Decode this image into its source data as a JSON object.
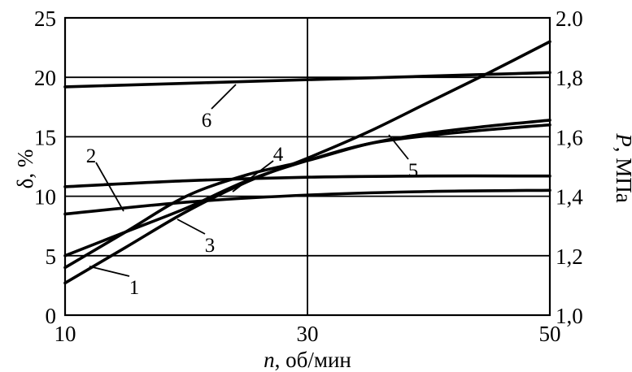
{
  "chart_data": {
    "type": "line",
    "x_axis": {
      "label_var": "n",
      "label_rest": ", об/мин",
      "ticks": [
        10,
        30,
        50
      ],
      "lim": [
        10,
        50
      ]
    },
    "y_axis_left": {
      "label": "δ, %",
      "ticks": [
        "0",
        "5",
        "10",
        "15",
        "20",
        "25"
      ],
      "lim": [
        0,
        25
      ]
    },
    "y_axis_right": {
      "label_var": "P",
      "label_rest": ", МПа",
      "ticks": [
        "1,0",
        "1,2",
        "1,4",
        "1,6",
        "1,8",
        "2.0"
      ],
      "lim": [
        1.0,
        2.0
      ]
    },
    "grid": {
      "horizontal": [
        5,
        10,
        15,
        20
      ],
      "vertical": [
        30
      ]
    },
    "series": [
      {
        "label": "1",
        "x": [
          10,
          15,
          20,
          25,
          30,
          35,
          40,
          45,
          50
        ],
        "y": [
          2.7,
          5.7,
          8.7,
          11.2,
          13.2,
          15.4,
          17.9,
          20.4,
          23.0
        ]
      },
      {
        "label": "2",
        "x": [
          10,
          20,
          30,
          40,
          50
        ],
        "y": [
          8.5,
          9.5,
          10.1,
          10.4,
          10.5
        ]
      },
      {
        "label": "3",
        "x": [
          10,
          15,
          20,
          25,
          30,
          35,
          40,
          45,
          50
        ],
        "y": [
          5.0,
          7.0,
          9.0,
          11.3,
          13.0,
          14.4,
          15.1,
          15.6,
          16.0
        ]
      },
      {
        "label": "4",
        "x": [
          10,
          20,
          30,
          40,
          50
        ],
        "y": [
          10.8,
          11.3,
          11.6,
          11.7,
          11.7
        ]
      },
      {
        "label": "5",
        "x": [
          10,
          15,
          20,
          25,
          30,
          35,
          40,
          45,
          50
        ],
        "y": [
          4.0,
          7.0,
          10.0,
          11.8,
          13.0,
          14.4,
          15.3,
          15.9,
          16.4
        ]
      },
      {
        "label": "6",
        "x": [
          10,
          20,
          30,
          40,
          50
        ],
        "y": [
          19.2,
          19.5,
          19.8,
          20.1,
          20.4
        ]
      }
    ]
  }
}
